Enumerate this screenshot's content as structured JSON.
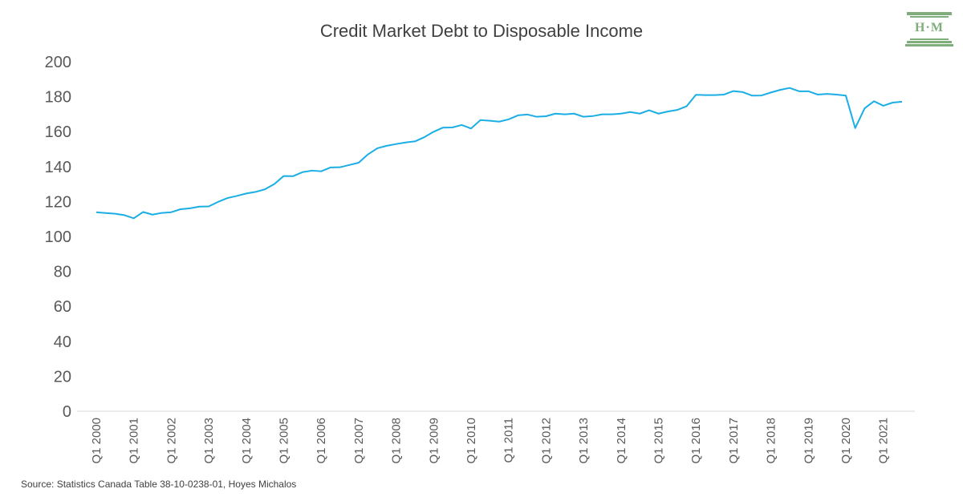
{
  "logo": {
    "text": "H·M",
    "color": "#7fae7c"
  },
  "source": "Source: Statistics Canada Table 38-10-0238-01, Hoyes Michalos",
  "chart_data": {
    "type": "line",
    "title": "Credit Market Debt to Disposable Income",
    "xlabel": "",
    "ylabel": "",
    "ylim": [
      0,
      200
    ],
    "yticks": [
      0,
      20,
      40,
      60,
      80,
      100,
      120,
      140,
      160,
      180,
      200
    ],
    "grid": false,
    "legend": "none",
    "x_tick_labels": [
      "Q1 2000",
      "Q1 2001",
      "Q1 2002",
      "Q1 2003",
      "Q1 2004",
      "Q1 2005",
      "Q1 2006",
      "Q1 2007",
      "Q1 2008",
      "Q1 2009",
      "Q1 2010",
      "Q1 2011",
      "Q1 2012",
      "Q1 2013",
      "Q1 2014",
      "Q1 2015",
      "Q1 2016",
      "Q1 2017",
      "Q1 2018",
      "Q1 2019",
      "Q1 2020",
      "Q1 2021"
    ],
    "x": [
      "Q1 2000",
      "Q2 2000",
      "Q3 2000",
      "Q4 2000",
      "Q1 2001",
      "Q2 2001",
      "Q3 2001",
      "Q4 2001",
      "Q1 2002",
      "Q2 2002",
      "Q3 2002",
      "Q4 2002",
      "Q1 2003",
      "Q2 2003",
      "Q3 2003",
      "Q4 2003",
      "Q1 2004",
      "Q2 2004",
      "Q3 2004",
      "Q4 2004",
      "Q1 2005",
      "Q2 2005",
      "Q3 2005",
      "Q4 2005",
      "Q1 2006",
      "Q2 2006",
      "Q3 2006",
      "Q4 2006",
      "Q1 2007",
      "Q2 2007",
      "Q3 2007",
      "Q4 2007",
      "Q1 2008",
      "Q2 2008",
      "Q3 2008",
      "Q4 2008",
      "Q1 2009",
      "Q2 2009",
      "Q3 2009",
      "Q4 2009",
      "Q1 2010",
      "Q2 2010",
      "Q3 2010",
      "Q4 2010",
      "Q1 2011",
      "Q2 2011",
      "Q3 2011",
      "Q4 2011",
      "Q1 2012",
      "Q2 2012",
      "Q3 2012",
      "Q4 2012",
      "Q1 2013",
      "Q2 2013",
      "Q3 2013",
      "Q4 2013",
      "Q1 2014",
      "Q2 2014",
      "Q3 2014",
      "Q4 2014",
      "Q1 2015",
      "Q2 2015",
      "Q3 2015",
      "Q4 2015",
      "Q1 2016",
      "Q2 2016",
      "Q3 2016",
      "Q4 2016",
      "Q1 2017",
      "Q2 2017",
      "Q3 2017",
      "Q4 2017",
      "Q1 2018",
      "Q2 2018",
      "Q3 2018",
      "Q4 2018",
      "Q1 2019",
      "Q2 2019",
      "Q3 2019",
      "Q4 2019",
      "Q1 2020",
      "Q2 2020",
      "Q3 2020",
      "Q4 2020",
      "Q1 2021",
      "Q2 2021",
      "Q3 2021"
    ],
    "series": [
      {
        "color": "#1aaee5",
        "values": [
          113.9,
          113.4,
          113.0,
          112.2,
          110.4,
          114.0,
          112.5,
          113.5,
          113.9,
          115.6,
          116.1,
          117.1,
          117.2,
          119.8,
          122.0,
          123.2,
          124.6,
          125.5,
          127.0,
          130.0,
          134.6,
          134.5,
          136.8,
          137.7,
          137.3,
          139.5,
          139.6,
          140.9,
          142.2,
          147.0,
          150.5,
          151.9,
          152.9,
          153.8,
          154.4,
          156.8,
          159.9,
          162.3,
          162.4,
          163.8,
          161.8,
          166.6,
          166.2,
          165.7,
          167.0,
          169.3,
          169.8,
          168.5,
          168.8,
          170.3,
          169.9,
          170.3,
          168.5,
          168.9,
          169.9,
          169.9,
          170.3,
          171.2,
          170.3,
          172.2,
          170.3,
          171.5,
          172.4,
          174.5,
          181.1,
          180.9,
          180.9,
          181.2,
          183.2,
          182.6,
          180.6,
          180.7,
          182.4,
          183.9,
          185.0,
          183.1,
          183.1,
          181.2,
          181.6,
          181.2,
          180.6,
          162.0,
          173.3,
          177.4,
          174.8,
          176.6,
          177.1
        ]
      }
    ]
  }
}
